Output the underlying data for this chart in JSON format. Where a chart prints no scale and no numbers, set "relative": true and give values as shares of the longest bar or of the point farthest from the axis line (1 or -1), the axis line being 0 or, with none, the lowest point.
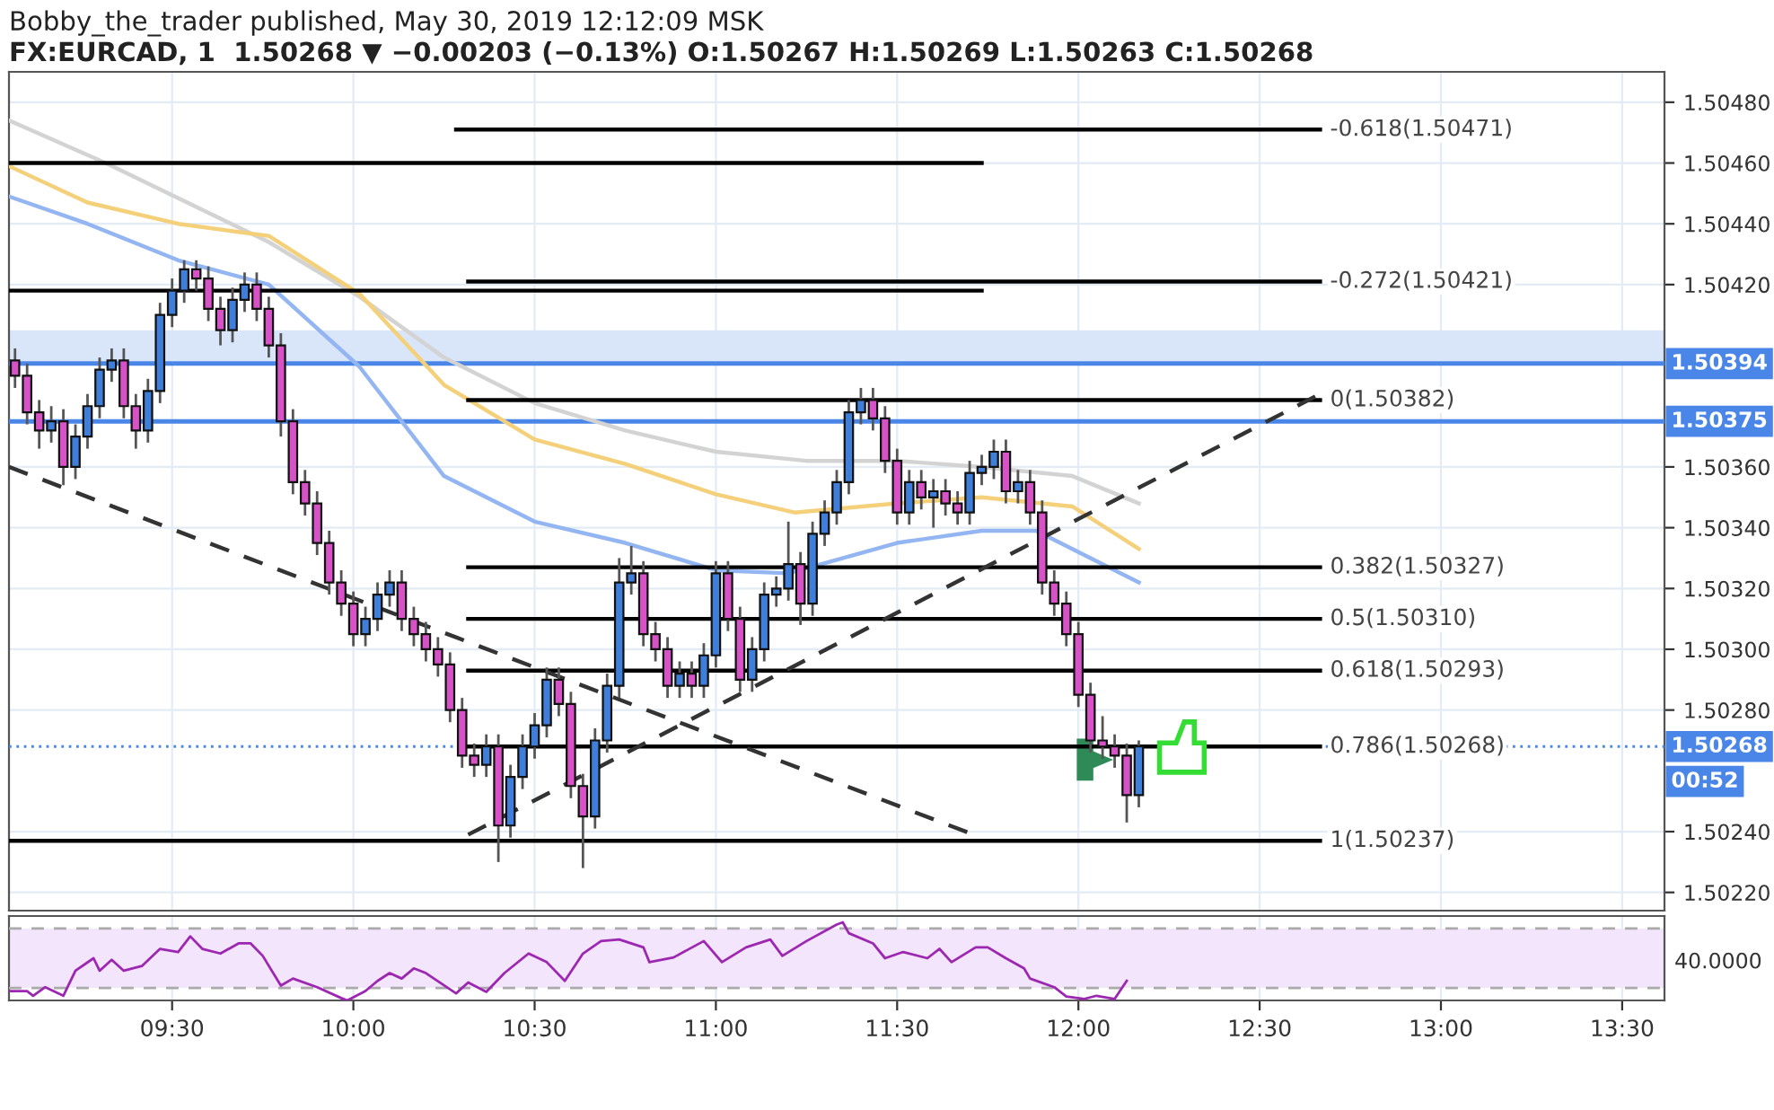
{
  "chart_data": [
    {
      "type": "candlestick",
      "title": "Bobby_the_trader published, May 30, 2019 12:12:09 MSK",
      "subtitle": "FX:EURCAD, 1  1.50268 ▼ −0.00203 (−0.13%) O:1.50267 H:1.50269 L:1.50263 C:1.50268",
      "colors": [
        "#d652c6",
        "#d652c6",
        "#d652c6",
        "#3f7fd9",
        "#d652c6",
        "#3f7fd9",
        "#3f7fd9",
        "#3f7fd9",
        "#3f7fd9",
        "#d652c6",
        "#d652c6",
        "#3f7fd9",
        "#3f7fd9",
        "#3f7fd9",
        "#3f7fd9",
        "#d652c6",
        "#d652c6",
        "#d652c6",
        "#3f7fd9",
        "#3f7fd9",
        "#d652c6",
        "#d652c6",
        "#d652c6",
        "#d652c6",
        "#d652c6",
        "#d652c6",
        "#d652c6",
        "#d652c6",
        "#d652c6",
        "#3f7fd9",
        "#3f7fd9",
        "#3f7fd9",
        "#d652c6",
        "#d652c6",
        "#d652c6",
        "#d652c6",
        "#d652c6",
        "#d652c6",
        "#d652c6",
        "#3f7fd9",
        "#d652c6",
        "#3f7fd9",
        "#3f7fd9",
        "#3f7fd9",
        "#3f7fd9",
        "#d652c6",
        "#d652c6",
        "#d652c6",
        "#3f7fd9",
        "#3f7fd9",
        "#3f7fd9",
        "#3f7fd9",
        "#d652c6",
        "#d652c6",
        "#d652c6",
        "#3f7fd9",
        "#d652c6",
        "#3f7fd9",
        "#3f7fd9",
        "#d652c6",
        "#d652c6",
        "#3f7fd9",
        "#3f7fd9",
        "#3f7fd9",
        "#3f7fd9",
        "#d652c6",
        "#3f7fd9",
        "#3f7fd9",
        "#3f7fd9",
        "#3f7fd9",
        "#3f7fd9",
        "#d652c6",
        "#d652c6",
        "#d652c6",
        "#3f7fd9",
        "#d652c6",
        "#3f7fd9",
        "#d652c6",
        "#d652c6",
        "#3f7fd9",
        "#3f7fd9",
        "#3f7fd9",
        "#d652c6",
        "#3f7fd9",
        "#d652c6",
        "#d652c6",
        "#d652c6",
        "#d652c6",
        "#d652c6",
        "#d652c6",
        "#d652c6",
        "#d652c6",
        "#d652c6",
        "#3f7fd9"
      ],
      "x": [
        "2019-05-30T09:04",
        "2019-05-30T09:06",
        "2019-05-30T09:08",
        "2019-05-30T09:10",
        "2019-05-30T09:12",
        "2019-05-30T09:14",
        "2019-05-30T09:16",
        "2019-05-30T09:18",
        "2019-05-30T09:20",
        "2019-05-30T09:22",
        "2019-05-30T09:24",
        "2019-05-30T09:26",
        "2019-05-30T09:28",
        "2019-05-30T09:30",
        "2019-05-30T09:32",
        "2019-05-30T09:34",
        "2019-05-30T09:36",
        "2019-05-30T09:38",
        "2019-05-30T09:40",
        "2019-05-30T09:42",
        "2019-05-30T09:44",
        "2019-05-30T09:46",
        "2019-05-30T09:48",
        "2019-05-30T09:50",
        "2019-05-30T09:52",
        "2019-05-30T09:54",
        "2019-05-30T09:56",
        "2019-05-30T09:58",
        "2019-05-30T10:00",
        "2019-05-30T10:02",
        "2019-05-30T10:04",
        "2019-05-30T10:06",
        "2019-05-30T10:08",
        "2019-05-30T10:10",
        "2019-05-30T10:12",
        "2019-05-30T10:14",
        "2019-05-30T10:16",
        "2019-05-30T10:18",
        "2019-05-30T10:20",
        "2019-05-30T10:22",
        "2019-05-30T10:24",
        "2019-05-30T10:26",
        "2019-05-30T10:28",
        "2019-05-30T10:30",
        "2019-05-30T10:32",
        "2019-05-30T10:34",
        "2019-05-30T10:36",
        "2019-05-30T10:38",
        "2019-05-30T10:40",
        "2019-05-30T10:42",
        "2019-05-30T10:44",
        "2019-05-30T10:46",
        "2019-05-30T10:48",
        "2019-05-30T10:50",
        "2019-05-30T10:52",
        "2019-05-30T10:54",
        "2019-05-30T10:56",
        "2019-05-30T10:58",
        "2019-05-30T11:00",
        "2019-05-30T11:02",
        "2019-05-30T11:04",
        "2019-05-30T11:06",
        "2019-05-30T11:08",
        "2019-05-30T11:10",
        "2019-05-30T11:12",
        "2019-05-30T11:14",
        "2019-05-30T11:16",
        "2019-05-30T11:18",
        "2019-05-30T11:20",
        "2019-05-30T11:22",
        "2019-05-30T11:24",
        "2019-05-30T11:26",
        "2019-05-30T11:28",
        "2019-05-30T11:30",
        "2019-05-30T11:32",
        "2019-05-30T11:34",
        "2019-05-30T11:36",
        "2019-05-30T11:38",
        "2019-05-30T11:40",
        "2019-05-30T11:42",
        "2019-05-30T11:44",
        "2019-05-30T11:46",
        "2019-05-30T11:48",
        "2019-05-30T11:50",
        "2019-05-30T11:52",
        "2019-05-30T11:54",
        "2019-05-30T11:56",
        "2019-05-30T11:58",
        "2019-05-30T12:00",
        "2019-05-30T12:02",
        "2019-05-30T12:04",
        "2019-05-30T12:06",
        "2019-05-30T12:08",
        "2019-05-30T12:10"
      ],
      "ohlc": [
        [
          1.50395,
          1.50399,
          1.50386,
          1.5039
        ],
        [
          1.5039,
          1.50394,
          1.50374,
          1.50378
        ],
        [
          1.50378,
          1.50382,
          1.50366,
          1.50372
        ],
        [
          1.50372,
          1.5038,
          1.50368,
          1.50375
        ],
        [
          1.50375,
          1.50379,
          1.50354,
          1.5036
        ],
        [
          1.5036,
          1.50374,
          1.50356,
          1.5037
        ],
        [
          1.5037,
          1.50384,
          1.50366,
          1.5038
        ],
        [
          1.5038,
          1.50396,
          1.50376,
          1.50392
        ],
        [
          1.50392,
          1.50399,
          1.50388,
          1.50395
        ],
        [
          1.50395,
          1.50399,
          1.50376,
          1.5038
        ],
        [
          1.5038,
          1.50384,
          1.50366,
          1.50372
        ],
        [
          1.50372,
          1.50389,
          1.50368,
          1.50385
        ],
        [
          1.50385,
          1.50414,
          1.50381,
          1.5041
        ],
        [
          1.5041,
          1.50422,
          1.50406,
          1.50418
        ],
        [
          1.50418,
          1.50428,
          1.50414,
          1.50425
        ],
        [
          1.50425,
          1.50428,
          1.50418,
          1.50422
        ],
        [
          1.50422,
          1.50426,
          1.50408,
          1.50412
        ],
        [
          1.50412,
          1.50416,
          1.504,
          1.50405
        ],
        [
          1.50405,
          1.50419,
          1.50401,
          1.50415
        ],
        [
          1.50415,
          1.50424,
          1.50411,
          1.5042
        ],
        [
          1.5042,
          1.50424,
          1.50408,
          1.50412
        ],
        [
          1.50412,
          1.50416,
          1.50396,
          1.504
        ],
        [
          1.504,
          1.50404,
          1.5037,
          1.50375
        ],
        [
          1.50375,
          1.50379,
          1.50351,
          1.50355
        ],
        [
          1.50355,
          1.50359,
          1.50344,
          1.50348
        ],
        [
          1.50348,
          1.50352,
          1.50331,
          1.50335
        ],
        [
          1.50335,
          1.50339,
          1.50318,
          1.50322
        ],
        [
          1.50322,
          1.50326,
          1.50311,
          1.50315
        ],
        [
          1.50315,
          1.50319,
          1.50301,
          1.50305
        ],
        [
          1.50305,
          1.50314,
          1.50301,
          1.5031
        ],
        [
          1.5031,
          1.50322,
          1.50306,
          1.50318
        ],
        [
          1.50318,
          1.50326,
          1.50314,
          1.50322
        ],
        [
          1.50322,
          1.50326,
          1.50306,
          1.5031
        ],
        [
          1.5031,
          1.50314,
          1.50301,
          1.50305
        ],
        [
          1.50305,
          1.50309,
          1.50296,
          1.503
        ],
        [
          1.503,
          1.50304,
          1.50291,
          1.50295
        ],
        [
          1.50295,
          1.50299,
          1.50276,
          1.5028
        ],
        [
          1.5028,
          1.50284,
          1.50261,
          1.50265
        ],
        [
          1.50265,
          1.50269,
          1.50258,
          1.50262
        ],
        [
          1.50262,
          1.50272,
          1.50258,
          1.50268
        ],
        [
          1.50268,
          1.50272,
          1.5023,
          1.50242
        ],
        [
          1.50242,
          1.50262,
          1.50238,
          1.50258
        ],
        [
          1.50258,
          1.50272,
          1.50254,
          1.50268
        ],
        [
          1.50268,
          1.50279,
          1.50264,
          1.50275
        ],
        [
          1.50275,
          1.50294,
          1.50271,
          1.5029
        ],
        [
          1.5029,
          1.50294,
          1.50278,
          1.50282
        ],
        [
          1.50282,
          1.50286,
          1.50251,
          1.50255
        ],
        [
          1.50255,
          1.50259,
          1.50228,
          1.50245
        ],
        [
          1.50245,
          1.50274,
          1.50241,
          1.5027
        ],
        [
          1.5027,
          1.50292,
          1.50266,
          1.50288
        ],
        [
          1.50288,
          1.5033,
          1.50284,
          1.50322
        ],
        [
          1.50322,
          1.50334,
          1.50318,
          1.50325
        ],
        [
          1.50325,
          1.50329,
          1.50301,
          1.50305
        ],
        [
          1.50305,
          1.50309,
          1.50296,
          1.503
        ],
        [
          1.503,
          1.50304,
          1.50284,
          1.50288
        ],
        [
          1.50288,
          1.50296,
          1.50284,
          1.50292
        ],
        [
          1.50292,
          1.50296,
          1.50284,
          1.50288
        ],
        [
          1.50288,
          1.50302,
          1.50284,
          1.50298
        ],
        [
          1.50298,
          1.50329,
          1.50294,
          1.50325
        ],
        [
          1.50325,
          1.50329,
          1.50306,
          1.5031
        ],
        [
          1.5031,
          1.50314,
          1.50286,
          1.5029
        ],
        [
          1.5029,
          1.50304,
          1.50286,
          1.503
        ],
        [
          1.503,
          1.50322,
          1.50296,
          1.50318
        ],
        [
          1.50318,
          1.50324,
          1.50314,
          1.5032
        ],
        [
          1.5032,
          1.50342,
          1.50316,
          1.50328
        ],
        [
          1.50328,
          1.50332,
          1.50308,
          1.50315
        ],
        [
          1.50315,
          1.50342,
          1.50311,
          1.50338
        ],
        [
          1.50338,
          1.50349,
          1.50334,
          1.50345
        ],
        [
          1.50345,
          1.50359,
          1.50341,
          1.50355
        ],
        [
          1.50355,
          1.50382,
          1.50351,
          1.50378
        ],
        [
          1.50378,
          1.50386,
          1.50374,
          1.50382
        ],
        [
          1.50382,
          1.50386,
          1.50372,
          1.50376
        ],
        [
          1.50376,
          1.5038,
          1.50358,
          1.50362
        ],
        [
          1.50362,
          1.50366,
          1.50341,
          1.50345
        ],
        [
          1.50345,
          1.50359,
          1.50341,
          1.50355
        ],
        [
          1.50355,
          1.50359,
          1.50346,
          1.5035
        ],
        [
          1.5035,
          1.50356,
          1.5034,
          1.50352
        ],
        [
          1.50352,
          1.50356,
          1.50344,
          1.50348
        ],
        [
          1.50348,
          1.50352,
          1.50341,
          1.50345
        ],
        [
          1.50345,
          1.50362,
          1.50341,
          1.50358
        ],
        [
          1.50358,
          1.50364,
          1.50354,
          1.5036
        ],
        [
          1.5036,
          1.50369,
          1.50356,
          1.50365
        ],
        [
          1.50365,
          1.50369,
          1.50348,
          1.50352
        ],
        [
          1.50352,
          1.50359,
          1.50348,
          1.50355
        ],
        [
          1.50355,
          1.50359,
          1.50341,
          1.50345
        ],
        [
          1.50345,
          1.50349,
          1.50318,
          1.50322
        ],
        [
          1.50322,
          1.50326,
          1.50311,
          1.50315
        ],
        [
          1.50315,
          1.50319,
          1.50301,
          1.50305
        ],
        [
          1.50305,
          1.50309,
          1.50281,
          1.50285
        ],
        [
          1.50285,
          1.50289,
          1.50266,
          1.5027
        ],
        [
          1.5027,
          1.50278,
          1.50264,
          1.50268
        ],
        [
          1.50268,
          1.50272,
          1.50261,
          1.50265
        ],
        [
          1.50265,
          1.50269,
          1.50243,
          1.50252
        ],
        [
          1.50252,
          1.5027,
          1.50248,
          1.50268
        ]
      ],
      "series": [
        {
          "type": "line",
          "color": "#d3d3d3",
          "x": [
            "2019-05-30T09:03",
            "2019-05-30T09:19",
            "2019-05-30T09:46",
            "2019-05-30T10:01",
            "2019-05-30T10:15",
            "2019-05-30T10:30",
            "2019-05-30T10:45",
            "2019-05-30T11:00",
            "2019-05-30T11:15",
            "2019-05-30T11:30",
            "2019-05-30T11:44",
            "2019-05-30T11:59",
            "2019-05-30T12:10"
          ],
          "values": [
            1.50474,
            1.5046,
            1.50434,
            1.50416,
            1.50396,
            1.50381,
            1.50372,
            1.50365,
            1.50362,
            1.50362,
            1.5036,
            1.50357,
            1.50348
          ]
        },
        {
          "type": "line",
          "color": "#f5d07a",
          "x": [
            "2019-05-30T09:03",
            "2019-05-30T09:16",
            "2019-05-30T09:31",
            "2019-05-30T09:46",
            "2019-05-30T10:01",
            "2019-05-30T10:15",
            "2019-05-30T10:30",
            "2019-05-30T10:45",
            "2019-05-30T11:00",
            "2019-05-30T11:13",
            "2019-05-30T11:30",
            "2019-05-30T11:44",
            "2019-05-30T11:59",
            "2019-05-30T12:10"
          ],
          "values": [
            1.50459,
            1.50447,
            1.5044,
            1.50436,
            1.50417,
            1.50387,
            1.50369,
            1.50361,
            1.50351,
            1.50345,
            1.50348,
            1.5035,
            1.50347,
            1.50333
          ]
        },
        {
          "type": "line",
          "color": "#93b5f2",
          "x": [
            "2019-05-30T09:03",
            "2019-05-30T09:16",
            "2019-05-30T09:31",
            "2019-05-30T09:46",
            "2019-05-30T10:01",
            "2019-05-30T10:15",
            "2019-05-30T10:30",
            "2019-05-30T10:45",
            "2019-05-30T11:00",
            "2019-05-30T11:12",
            "2019-05-30T11:30",
            "2019-05-30T11:44",
            "2019-05-30T11:53",
            "2019-05-30T12:02",
            "2019-05-30T12:10"
          ],
          "values": [
            1.50449,
            1.5044,
            1.50428,
            1.5042,
            1.50393,
            1.50357,
            1.50342,
            1.50335,
            1.50326,
            1.50325,
            1.50335,
            1.50339,
            1.50339,
            1.5033,
            1.50322
          ]
        },
        {
          "type": "line",
          "color": "#000000",
          "x": [
            "2019-05-30T10:17",
            "2019-05-30T12:40"
          ],
          "values": [
            1.50471,
            1.50471
          ]
        },
        {
          "type": "line",
          "color": "#000000",
          "x": [
            "2019-05-30T09:03",
            "2019-05-30T11:44"
          ],
          "values": [
            1.5046,
            1.5046
          ]
        },
        {
          "type": "line",
          "color": "#000000",
          "x": [
            "2019-05-30T10:19",
            "2019-05-30T12:40"
          ],
          "values": [
            1.50421,
            1.50421
          ]
        },
        {
          "type": "line",
          "color": "#000000",
          "x": [
            "2019-05-30T09:03",
            "2019-05-30T11:44"
          ],
          "values": [
            1.50418,
            1.50418
          ]
        },
        {
          "type": "line",
          "color": "#000000",
          "x": [
            "2019-05-30T10:19",
            "2019-05-30T12:40"
          ],
          "values": [
            1.50382,
            1.50382
          ]
        },
        {
          "type": "line",
          "color": "#000000",
          "x": [
            "2019-05-30T10:19",
            "2019-05-30T12:40"
          ],
          "values": [
            1.50327,
            1.50327
          ]
        },
        {
          "type": "line",
          "color": "#000000",
          "x": [
            "2019-05-30T10:19",
            "2019-05-30T12:40"
          ],
          "values": [
            1.5031,
            1.5031
          ]
        },
        {
          "type": "line",
          "color": "#000000",
          "x": [
            "2019-05-30T10:19",
            "2019-05-30T12:40"
          ],
          "values": [
            1.50293,
            1.50293
          ]
        },
        {
          "type": "line",
          "color": "#000000",
          "x": [
            "2019-05-30T10:19",
            "2019-05-30T12:40"
          ],
          "values": [
            1.50268,
            1.50268
          ]
        },
        {
          "type": "line",
          "color": "#000000",
          "x": [
            "2019-05-30T09:03",
            "2019-05-30T12:40"
          ],
          "values": [
            1.50237,
            1.50237
          ]
        },
        {
          "type": "line",
          "color": "#333333",
          "line_style": "dashed",
          "x": [
            "2019-05-30T09:03",
            "2019-05-30T11:44"
          ],
          "values": [
            1.5036,
            1.50238
          ]
        },
        {
          "type": "line",
          "color": "#333333",
          "line_style": "dashed",
          "x": [
            "2019-05-30T10:19",
            "2019-05-30T12:40"
          ],
          "values": [
            1.50239,
            1.50384
          ]
        }
      ],
      "annotations": [
        {
          "text": "-0.618(1.50471)",
          "x": "2019-05-30T12:40",
          "y": 1.50471
        },
        {
          "text": "-0.272(1.50421)",
          "x": "2019-05-30T12:40",
          "y": 1.50421
        },
        {
          "text": "0(1.50382)",
          "x": "2019-05-30T12:40",
          "y": 1.50382
        },
        {
          "text": "0.382(1.50327)",
          "x": "2019-05-30T12:40",
          "y": 1.50327
        },
        {
          "text": "0.5(1.50310)",
          "x": "2019-05-30T12:40",
          "y": 1.5031
        },
        {
          "text": "0.618(1.50293)",
          "x": "2019-05-30T12:40",
          "y": 1.50293
        },
        {
          "text": "0.786(1.50268)",
          "x": "2019-05-30T12:40",
          "y": 1.50268
        },
        {
          "text": "1(1.50237)",
          "x": "2019-05-30T12:40",
          "y": 1.50237
        },
        "00:52"
      ],
      "ref_lines": [
        {
          "axis": "y",
          "value": 1.50394,
          "label": "1.50394",
          "color": "#4a86e8",
          "line_style": "solid"
        },
        {
          "axis": "y",
          "value": 1.50375,
          "label": "1.50375",
          "color": "#4a86e8",
          "line_style": "solid"
        },
        {
          "axis": "y",
          "value": 1.50268,
          "label": "1.50268",
          "color": "#4a86e8",
          "line_style": "dotted"
        }
      ],
      "bands": [
        {
          "axis": "y",
          "from": 1.50394,
          "to": 1.50405,
          "color": "#d9e5f8"
        }
      ],
      "xlim": [
        "2019-05-30T09:03",
        "2019-05-30T13:37"
      ],
      "xticks": [
        {
          "value": "2019-05-30T09:30",
          "label": null
        },
        {
          "value": "2019-05-30T10:00",
          "label": null
        },
        {
          "value": "2019-05-30T10:30",
          "label": null
        },
        {
          "value": "2019-05-30T11:00",
          "label": null
        },
        {
          "value": "2019-05-30T11:30",
          "label": null
        },
        {
          "value": "2019-05-30T12:00",
          "label": null
        },
        {
          "value": "2019-05-30T12:30",
          "label": null
        },
        {
          "value": "2019-05-30T13:00",
          "label": null
        },
        {
          "value": "2019-05-30T13:30",
          "label": null
        }
      ],
      "ylim": [
        1.50214,
        1.5049
      ],
      "yticks": [
        {
          "value": 1.5022,
          "label": "1.50220"
        },
        {
          "value": 1.5024,
          "label": "1.50240"
        },
        {
          "value": 1.5028,
          "label": "1.50280"
        },
        {
          "value": 1.503,
          "label": "1.50300"
        },
        {
          "value": 1.5032,
          "label": "1.50320"
        },
        {
          "value": 1.5034,
          "label": "1.50340"
        },
        {
          "value": 1.5036,
          "label": "1.50360"
        },
        {
          "value": 1.5042,
          "label": "1.50420"
        },
        {
          "value": 1.5044,
          "label": "1.50440"
        },
        {
          "value": 1.5046,
          "label": "1.50460"
        },
        {
          "value": 1.5048,
          "label": "1.50480"
        }
      ],
      "tick_labels": "y",
      "grid": true,
      "legend": false
    },
    {
      "type": "line",
      "relative": true,
      "series": [
        {
          "color": "#9c27b0",
          "x": [
            "2019-05-30T09:03",
            "2019-05-30T09:06",
            "2019-05-30T09:07",
            "2019-05-30T09:09",
            "2019-05-30T09:12",
            "2019-05-30T09:14",
            "2019-05-30T09:17",
            "2019-05-30T09:18",
            "2019-05-30T09:20",
            "2019-05-30T09:22",
            "2019-05-30T09:25",
            "2019-05-30T09:28",
            "2019-05-30T09:31",
            "2019-05-30T09:33",
            "2019-05-30T09:35",
            "2019-05-30T09:38",
            "2019-05-30T09:41",
            "2019-05-30T09:43",
            "2019-05-30T09:45",
            "2019-05-30T09:48",
            "2019-05-30T09:50",
            "2019-05-30T09:54",
            "2019-05-30T09:58",
            "2019-05-30T09:59",
            "2019-05-30T10:02",
            "2019-05-30T10:04",
            "2019-05-30T10:06",
            "2019-05-30T10:08",
            "2019-05-30T10:10",
            "2019-05-30T10:12",
            "2019-05-30T10:17",
            "2019-05-30T10:19",
            "2019-05-30T10:22",
            "2019-05-30T10:25",
            "2019-05-30T10:29",
            "2019-05-30T10:32",
            "2019-05-30T10:35",
            "2019-05-30T10:38",
            "2019-05-30T10:41",
            "2019-05-30T10:44",
            "2019-05-30T10:48",
            "2019-05-30T10:49",
            "2019-05-30T10:53",
            "2019-05-30T10:58",
            "2019-05-30T11:01",
            "2019-05-30T11:05",
            "2019-05-30T11:09",
            "2019-05-30T11:11",
            "2019-05-30T11:15",
            "2019-05-30T11:20",
            "2019-05-30T11:21",
            "2019-05-30T11:22",
            "2019-05-30T11:26",
            "2019-05-30T11:28",
            "2019-05-30T11:31",
            "2019-05-30T11:35",
            "2019-05-30T11:37",
            "2019-05-30T11:39",
            "2019-05-30T11:43",
            "2019-05-30T11:45",
            "2019-05-30T11:48",
            "2019-05-30T11:51",
            "2019-05-30T11:52",
            "2019-05-30T11:56",
            "2019-05-30T11:58",
            "2019-05-30T12:01",
            "2019-05-30T12:03",
            "2019-05-30T12:06",
            "2019-05-30T12:08"
          ],
          "values": [
            0.12,
            0.12,
            0.06,
            0.17,
            0.06,
            0.38,
            0.54,
            0.38,
            0.52,
            0.38,
            0.44,
            0.66,
            0.62,
            0.82,
            0.66,
            0.6,
            0.73,
            0.73,
            0.57,
            0.19,
            0.28,
            0.17,
            0.03,
            0,
            0.12,
            0.25,
            0.35,
            0.28,
            0.41,
            0.35,
            0.09,
            0.23,
            0.11,
            0.35,
            0.6,
            0.49,
            0.25,
            0.6,
            0.76,
            0.78,
            0.68,
            0.49,
            0.55,
            0.76,
            0.49,
            0.68,
            0.78,
            0.57,
            0.76,
            0.97,
            1,
            0.86,
            0.73,
            0.54,
            0.62,
            0.54,
            0.66,
            0.49,
            0.68,
            0.68,
            0.54,
            0.41,
            0.28,
            0.17,
            0.05,
            0.02,
            0.06,
            0.02,
            0.25
          ]
        }
      ],
      "ref_lines": [
        {
          "axis": "y",
          "value": 0.92,
          "color": "#aaaaaa",
          "line_style": "dashed"
        },
        {
          "axis": "y",
          "value": 0.16,
          "color": "#aaaaaa",
          "line_style": "dashed"
        }
      ],
      "bands": [
        {
          "axis": "y",
          "from": 0.16,
          "to": 0.92,
          "color": "#f3e5fc"
        }
      ],
      "annotations": [
        "40.0000"
      ],
      "xlim": [
        "2019-05-30T09:03",
        "2019-05-30T13:37"
      ],
      "xticks": [
        {
          "value": "2019-05-30T09:30",
          "label": "09:30"
        },
        {
          "value": "2019-05-30T10:00",
          "label": "10:00"
        },
        {
          "value": "2019-05-30T10:30",
          "label": "10:30"
        },
        {
          "value": "2019-05-30T11:00",
          "label": "11:00"
        },
        {
          "value": "2019-05-30T11:30",
          "label": "11:30"
        },
        {
          "value": "2019-05-30T12:00",
          "label": "12:00"
        },
        {
          "value": "2019-05-30T12:30",
          "label": "12:30"
        },
        {
          "value": "2019-05-30T13:00",
          "label": "13:00"
        },
        {
          "value": "2019-05-30T13:30",
          "label": "13:30"
        }
      ],
      "tick_labels": "x",
      "grid": true,
      "legend": false
    }
  ]
}
